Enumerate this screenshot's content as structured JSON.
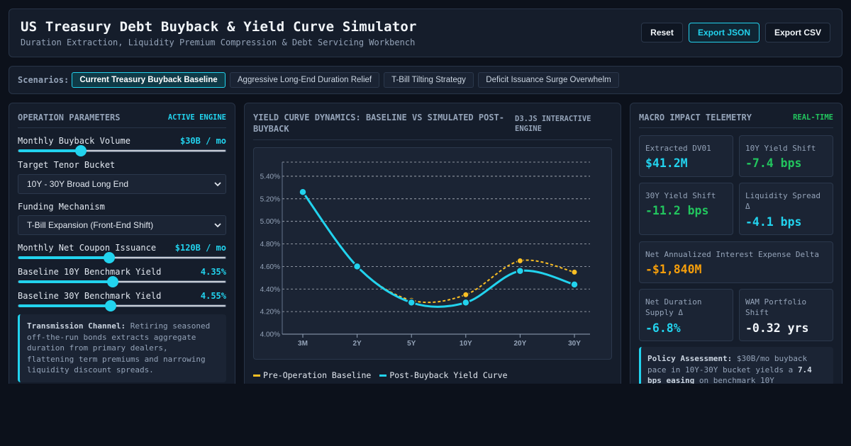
{
  "header": {
    "title": "US Treasury Debt Buyback & Yield Curve Simulator",
    "subtitle": "Duration Extraction, Liquidity Premium Compression & Debt Servicing Workbench",
    "buttons": {
      "reset": "Reset",
      "export_json": "Export JSON",
      "export_csv": "Export CSV"
    }
  },
  "scenarios": {
    "label": "Scenarios:",
    "items": [
      {
        "label": "Current Treasury Buyback Baseline",
        "active": true
      },
      {
        "label": "Aggressive Long-End Duration Relief",
        "active": false
      },
      {
        "label": "T-Bill Tilting Strategy",
        "active": false
      },
      {
        "label": "Deficit Issuance Surge Overwhelm",
        "active": false
      }
    ]
  },
  "params": {
    "title": "OPERATION PARAMETERS",
    "badge": "ACTIVE ENGINE",
    "buyback_volume": {
      "label": "Monthly Buyback Volume",
      "value": "$30B / mo",
      "fraction": 0.3
    },
    "tenor_bucket": {
      "label": "Target Tenor Bucket",
      "selected": "10Y - 30Y Broad Long End"
    },
    "funding": {
      "label": "Funding Mechanism",
      "selected": "T-Bill Expansion (Front-End Shift)"
    },
    "coupon_issuance": {
      "label": "Monthly Net Coupon Issuance",
      "value": "$120B / mo",
      "fraction": 0.44
    },
    "yield_10y": {
      "label": "Baseline 10Y Benchmark Yield",
      "value": "4.35%",
      "fraction": 0.455
    },
    "yield_30y": {
      "label": "Baseline 30Y Benchmark Yield",
      "value": "4.55%",
      "fraction": 0.445
    },
    "transmission": {
      "heading": "Transmission Channel:",
      "text": "Retiring seasoned off-the-run bonds extracts aggregate duration from primary dealers, flattening term premiums and narrowing liquidity discount spreads."
    }
  },
  "chart": {
    "title": "YIELD CURVE DYNAMICS: BASELINE VS SIMULATED POST-BUYBACK",
    "badge": "D3.JS INTERACTIVE ENGINE"
  },
  "chart_data": {
    "type": "line",
    "categories": [
      "3M",
      "2Y",
      "5Y",
      "10Y",
      "20Y",
      "30Y"
    ],
    "ylim": [
      4.0,
      5.5
    ],
    "yticks": [
      "4.00%",
      "4.20%",
      "4.40%",
      "4.60%",
      "4.80%",
      "5.00%",
      "5.20%",
      "5.40%"
    ],
    "grid": true,
    "legend_position": "bottom-left",
    "series": [
      {
        "name": "Pre-Operation Baseline",
        "values": [
          5.26,
          4.6,
          4.3,
          4.35,
          4.65,
          4.55
        ],
        "color": "#fbbf24",
        "style": "dashed"
      },
      {
        "name": "Post-Buyback Yield Curve",
        "values": [
          5.26,
          4.6,
          4.28,
          4.28,
          4.56,
          4.44
        ],
        "color": "#22d3ee",
        "style": "solid"
      }
    ]
  },
  "macro": {
    "title": "MACRO IMPACT TELEMETRY",
    "badge": "REAL-TIME",
    "cards": {
      "dv01": {
        "label": "Extracted DV01",
        "value": "$41.2M"
      },
      "y10": {
        "label": "10Y Yield Shift",
        "value": "-7.4 bps"
      },
      "y30": {
        "label": "30Y Yield Shift",
        "value": "-11.2 bps"
      },
      "liq": {
        "label": "Liquidity Spread Δ",
        "value": "-4.1 bps"
      },
      "interest": {
        "label": "Net Annualized Interest Expense Delta",
        "value": "-$1,840M"
      },
      "duration": {
        "label": "Net Duration Supply Δ",
        "value": "-6.8%"
      },
      "wam": {
        "label": "WAM Portfolio Shift",
        "value": "-0.32 yrs"
      }
    },
    "policy": {
      "heading": "Policy Assessment:",
      "t1": "$30B/mo buyback pace in 10Y-30Y bucket yields a",
      "strong": "7.4 bps easing",
      "t2": "on benchmark 10Y"
    }
  },
  "colors": {
    "accent": "#22d3ee",
    "baseline": "#fbbf24",
    "positive": "#22c55e",
    "warning": "#f59e0b"
  }
}
